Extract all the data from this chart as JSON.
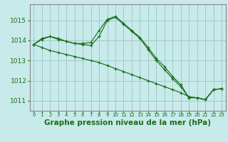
{
  "background_color": "#c8eaea",
  "grid_color": "#a0c8c8",
  "line_color": "#1a6e1a",
  "marker_color": "#1a6e1a",
  "xlabel": "Graphe pression niveau de la mer (hPa)",
  "xlabel_fontsize": 7.5,
  "ylim": [
    1010.5,
    1015.8
  ],
  "xlim": [
    -0.5,
    23.5
  ],
  "series": [
    [
      1013.8,
      1014.1,
      1014.2,
      1014.1,
      1013.95,
      1013.85,
      1013.85,
      1013.9,
      1014.5,
      1015.05,
      1015.2,
      1014.85,
      1014.5,
      1014.15,
      1013.65,
      1013.1,
      1012.7,
      1012.2,
      1011.8,
      1011.15,
      1011.15,
      1011.05,
      1011.55,
      1011.6
    ],
    [
      1013.8,
      1014.05,
      1014.2,
      1014.05,
      1013.95,
      1013.85,
      1013.8,
      1013.75,
      1014.2,
      1015.0,
      1015.15,
      1014.8,
      1014.45,
      1014.1,
      1013.55,
      1013.0,
      1012.55,
      1012.1,
      1011.7,
      1011.15,
      1011.15,
      1011.05,
      1011.55,
      1011.6
    ],
    [
      1013.8,
      1013.65,
      1013.5,
      1013.4,
      1013.3,
      1013.2,
      1013.1,
      1013.0,
      1012.9,
      1012.75,
      1012.6,
      1012.45,
      1012.3,
      1012.15,
      1012.0,
      1011.85,
      1011.7,
      1011.55,
      1011.4,
      1011.2,
      1011.15,
      1011.05,
      1011.55,
      1011.6
    ]
  ]
}
